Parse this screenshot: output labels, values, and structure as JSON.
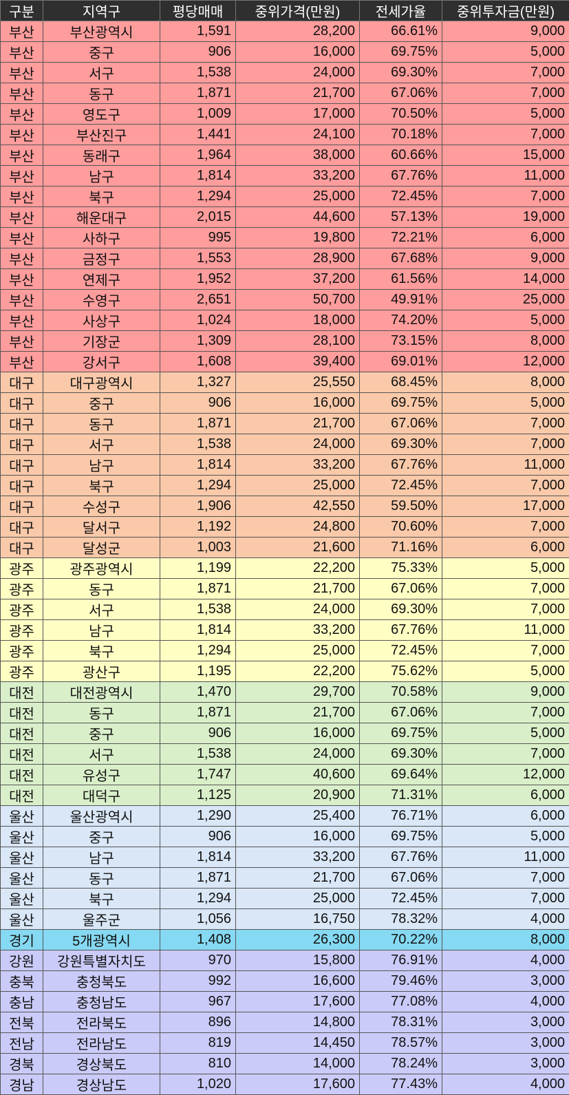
{
  "header": [
    "구분",
    "지역구",
    "평당매매",
    "중위가격(만원)",
    "전세가율",
    "중위투자금(만원)"
  ],
  "colors": {
    "header": "#2f2f2f",
    "부산": "#ff9c9c",
    "대구": "#f9c9a9",
    "광주": "#ffffc4",
    "대전": "#d9efc9",
    "울산": "#d9e7f7",
    "경기": "#86d9f2",
    "기타": "#cbcbf9"
  },
  "rows": [
    [
      "부산",
      "부산광역시",
      "1,591",
      "28,200",
      "66.61%",
      "9,000"
    ],
    [
      "부산",
      "중구",
      "906",
      "16,000",
      "69.75%",
      "5,000"
    ],
    [
      "부산",
      "서구",
      "1,538",
      "24,000",
      "69.30%",
      "7,000"
    ],
    [
      "부산",
      "동구",
      "1,871",
      "21,700",
      "67.06%",
      "7,000"
    ],
    [
      "부산",
      "영도구",
      "1,009",
      "17,000",
      "70.50%",
      "5,000"
    ],
    [
      "부산",
      "부산진구",
      "1,441",
      "24,100",
      "70.18%",
      "7,000"
    ],
    [
      "부산",
      "동래구",
      "1,964",
      "38,000",
      "60.66%",
      "15,000"
    ],
    [
      "부산",
      "남구",
      "1,814",
      "33,200",
      "67.76%",
      "11,000"
    ],
    [
      "부산",
      "북구",
      "1,294",
      "25,000",
      "72.45%",
      "7,000"
    ],
    [
      "부산",
      "해운대구",
      "2,015",
      "44,600",
      "57.13%",
      "19,000"
    ],
    [
      "부산",
      "사하구",
      "995",
      "19,800",
      "72.21%",
      "6,000"
    ],
    [
      "부산",
      "금정구",
      "1,553",
      "28,900",
      "67.68%",
      "9,000"
    ],
    [
      "부산",
      "연제구",
      "1,952",
      "37,200",
      "61.56%",
      "14,000"
    ],
    [
      "부산",
      "수영구",
      "2,651",
      "50,700",
      "49.91%",
      "25,000"
    ],
    [
      "부산",
      "사상구",
      "1,024",
      "18,000",
      "74.20%",
      "5,000"
    ],
    [
      "부산",
      "기장군",
      "1,309",
      "28,100",
      "73.15%",
      "8,000"
    ],
    [
      "부산",
      "강서구",
      "1,608",
      "39,400",
      "69.01%",
      "12,000"
    ],
    [
      "대구",
      "대구광역시",
      "1,327",
      "25,550",
      "68.45%",
      "8,000"
    ],
    [
      "대구",
      "중구",
      "906",
      "16,000",
      "69.75%",
      "5,000"
    ],
    [
      "대구",
      "동구",
      "1,871",
      "21,700",
      "67.06%",
      "7,000"
    ],
    [
      "대구",
      "서구",
      "1,538",
      "24,000",
      "69.30%",
      "7,000"
    ],
    [
      "대구",
      "남구",
      "1,814",
      "33,200",
      "67.76%",
      "11,000"
    ],
    [
      "대구",
      "북구",
      "1,294",
      "25,000",
      "72.45%",
      "7,000"
    ],
    [
      "대구",
      "수성구",
      "1,906",
      "42,550",
      "59.50%",
      "17,000"
    ],
    [
      "대구",
      "달서구",
      "1,192",
      "24,800",
      "70.60%",
      "7,000"
    ],
    [
      "대구",
      "달성군",
      "1,003",
      "21,600",
      "71.16%",
      "6,000"
    ],
    [
      "광주",
      "광주광역시",
      "1,199",
      "22,200",
      "75.33%",
      "5,000"
    ],
    [
      "광주",
      "동구",
      "1,871",
      "21,700",
      "67.06%",
      "7,000"
    ],
    [
      "광주",
      "서구",
      "1,538",
      "24,000",
      "69.30%",
      "7,000"
    ],
    [
      "광주",
      "남구",
      "1,814",
      "33,200",
      "67.76%",
      "11,000"
    ],
    [
      "광주",
      "북구",
      "1,294",
      "25,000",
      "72.45%",
      "7,000"
    ],
    [
      "광주",
      "광산구",
      "1,195",
      "22,200",
      "75.62%",
      "5,000"
    ],
    [
      "대전",
      "대전광역시",
      "1,470",
      "29,700",
      "70.58%",
      "9,000"
    ],
    [
      "대전",
      "동구",
      "1,871",
      "21,700",
      "67.06%",
      "7,000"
    ],
    [
      "대전",
      "중구",
      "906",
      "16,000",
      "69.75%",
      "5,000"
    ],
    [
      "대전",
      "서구",
      "1,538",
      "24,000",
      "69.30%",
      "7,000"
    ],
    [
      "대전",
      "유성구",
      "1,747",
      "40,600",
      "69.64%",
      "12,000"
    ],
    [
      "대전",
      "대덕구",
      "1,125",
      "20,900",
      "71.31%",
      "6,000"
    ],
    [
      "울산",
      "울산광역시",
      "1,290",
      "25,400",
      "76.71%",
      "6,000"
    ],
    [
      "울산",
      "중구",
      "906",
      "16,000",
      "69.75%",
      "5,000"
    ],
    [
      "울산",
      "남구",
      "1,814",
      "33,200",
      "67.76%",
      "11,000"
    ],
    [
      "울산",
      "동구",
      "1,871",
      "21,700",
      "67.06%",
      "7,000"
    ],
    [
      "울산",
      "북구",
      "1,294",
      "25,000",
      "72.45%",
      "7,000"
    ],
    [
      "울산",
      "울주군",
      "1,056",
      "16,750",
      "78.32%",
      "4,000"
    ],
    [
      "경기",
      "5개광역시",
      "1,408",
      "26,300",
      "70.22%",
      "8,000"
    ],
    [
      "강원",
      "강원특별자치도",
      "970",
      "15,800",
      "76.91%",
      "4,000"
    ],
    [
      "충북",
      "충청북도",
      "992",
      "16,600",
      "79.46%",
      "3,000"
    ],
    [
      "충남",
      "충청남도",
      "967",
      "17,600",
      "77.08%",
      "4,000"
    ],
    [
      "전북",
      "전라북도",
      "896",
      "14,800",
      "78.31%",
      "3,000"
    ],
    [
      "전남",
      "전라남도",
      "819",
      "14,450",
      "78.57%",
      "3,000"
    ],
    [
      "경북",
      "경상북도",
      "810",
      "14,000",
      "78.24%",
      "3,000"
    ],
    [
      "경남",
      "경상남도",
      "1,020",
      "17,600",
      "77.43%",
      "4,000"
    ]
  ]
}
